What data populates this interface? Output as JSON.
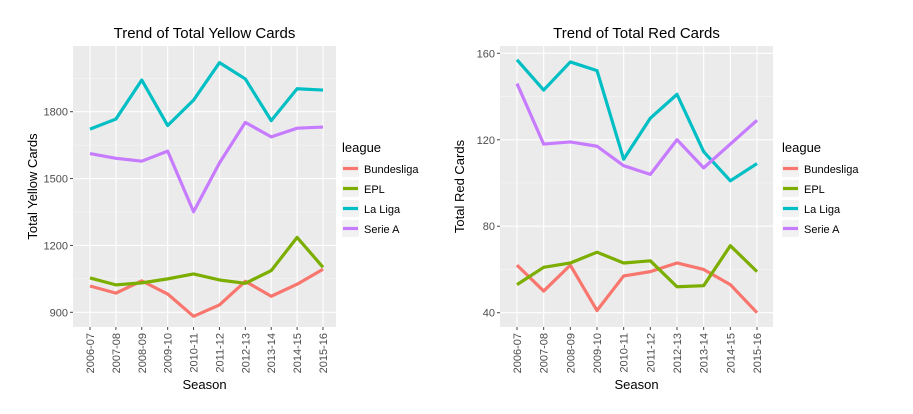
{
  "chart_data": [
    {
      "type": "line",
      "title": "Trend of Total Yellow Cards",
      "xlabel": "Season",
      "ylabel": "Total Yellow Cards",
      "categories": [
        "2006-07",
        "2007-08",
        "2008-09",
        "2009-10",
        "2010-11",
        "2011-12",
        "2012-13",
        "2013-14",
        "2014-15",
        "2015-16"
      ],
      "yticks": [
        900,
        1200,
        1500,
        1800
      ],
      "ylim": [
        850,
        2050
      ],
      "grid": true,
      "legend": {
        "title": "league",
        "position": "right"
      },
      "series": [
        {
          "name": "Bundesliga",
          "color": "#F8766D",
          "values": [
            1018,
            986,
            1041,
            982,
            882,
            933,
            1039,
            972,
            1026,
            1093
          ]
        },
        {
          "name": "EPL",
          "color": "#7CAE00",
          "values": [
            1054,
            1023,
            1032,
            1050,
            1072,
            1045,
            1030,
            1087,
            1236,
            1102
          ]
        },
        {
          "name": "La Liga",
          "color": "#00BFC4",
          "values": [
            1722,
            1767,
            1942,
            1738,
            1852,
            2020,
            1947,
            1760,
            1903,
            1897
          ]
        },
        {
          "name": "Serie A",
          "color": "#C77CFF",
          "values": [
            1612,
            1591,
            1578,
            1623,
            1351,
            1570,
            1752,
            1687,
            1726,
            1731
          ]
        }
      ]
    },
    {
      "type": "line",
      "title": "Trend of Total Red Cards",
      "xlabel": "Season",
      "ylabel": "Total Red Cards",
      "categories": [
        "2006-07",
        "2007-08",
        "2008-09",
        "2009-10",
        "2010-11",
        "2011-12",
        "2012-13",
        "2013-14",
        "2014-15",
        "2015-16"
      ],
      "yticks": [
        40,
        80,
        120,
        160
      ],
      "ylim": [
        35,
        162
      ],
      "grid": true,
      "legend": {
        "title": "league",
        "position": "right"
      },
      "series": [
        {
          "name": "Bundesliga",
          "color": "#F8766D",
          "values": [
            62,
            50,
            62,
            41,
            57,
            59,
            63,
            60,
            53,
            40
          ]
        },
        {
          "name": "EPL",
          "color": "#7CAE00",
          "values": [
            53,
            61,
            63,
            68,
            63,
            64,
            52,
            52.5,
            71,
            59
          ]
        },
        {
          "name": "La Liga",
          "color": "#00BFC4",
          "values": [
            157,
            143,
            156,
            152,
            111,
            130,
            141,
            114.5,
            101,
            109
          ]
        },
        {
          "name": "Serie A",
          "color": "#C77CFF",
          "values": [
            146,
            118,
            119,
            117,
            108,
            104,
            120,
            107,
            118,
            129
          ]
        }
      ]
    }
  ]
}
